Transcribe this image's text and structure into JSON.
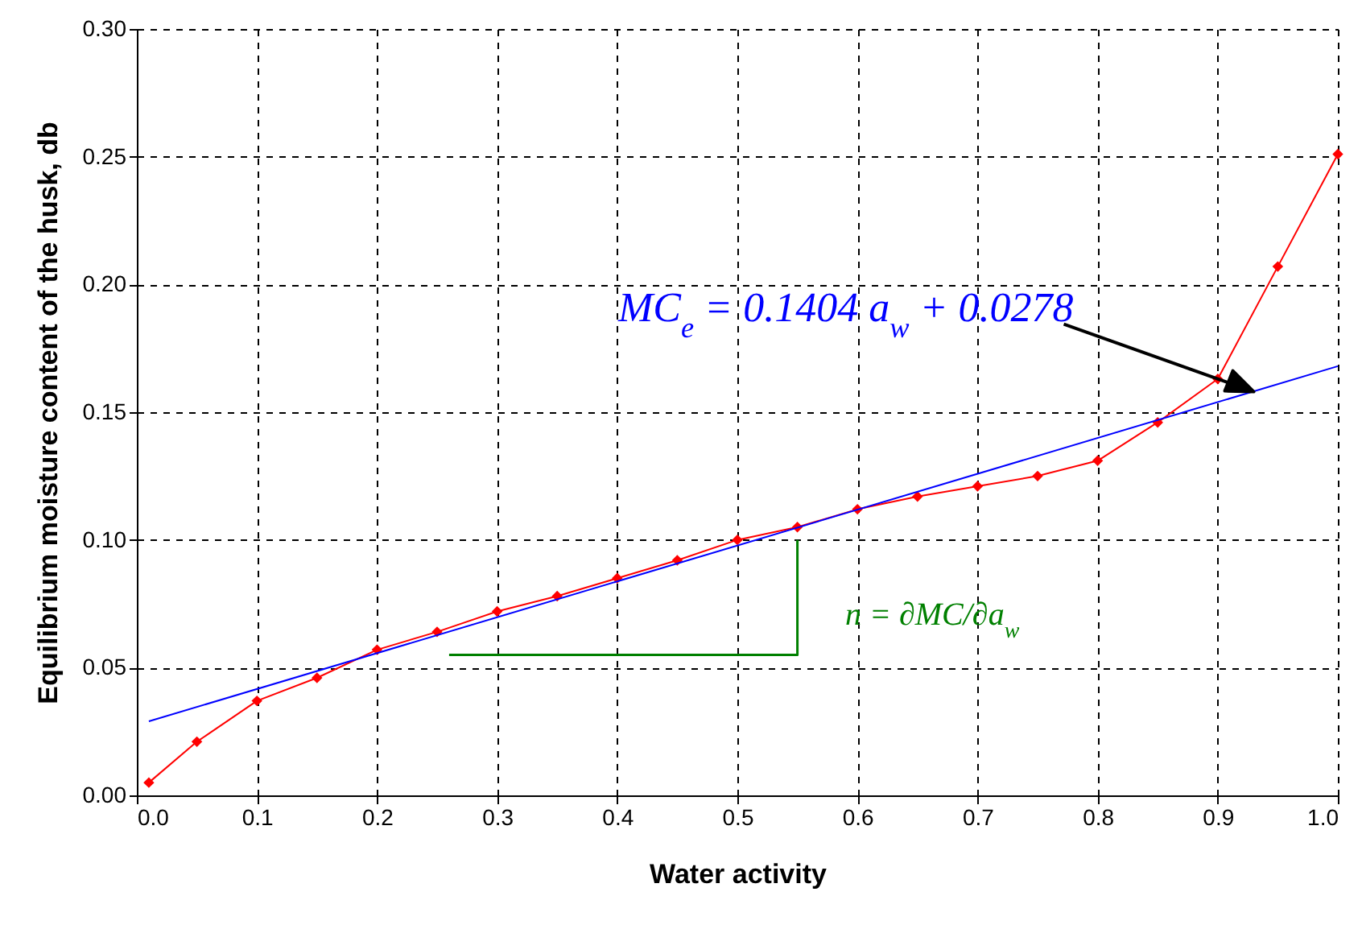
{
  "chart_data": {
    "type": "line",
    "xlabel": "Water activity",
    "ylabel": "Equilibrium moisture content of the husk, db",
    "x": [
      0.01,
      0.05,
      0.1,
      0.15,
      0.2,
      0.25,
      0.3,
      0.35,
      0.4,
      0.45,
      0.5,
      0.55,
      0.6,
      0.65,
      0.7,
      0.75,
      0.8,
      0.85,
      0.9,
      0.95,
      1.0
    ],
    "series": [
      {
        "color": "#ff0000",
        "marker": "diamond",
        "values": [
          0.005,
          0.021,
          0.037,
          0.046,
          0.057,
          0.064,
          0.072,
          0.078,
          0.085,
          0.092,
          0.1,
          0.105,
          0.112,
          0.117,
          0.121,
          0.125,
          0.131,
          0.146,
          0.163,
          0.207,
          0.251
        ]
      },
      {
        "type": "line",
        "color": "#0000ff",
        "marker": "none",
        "x": [
          0.01,
          1.0
        ],
        "values": [
          0.029,
          0.168
        ]
      },
      {
        "type": "line",
        "color": "#008000",
        "marker": "none",
        "x": [
          0.26,
          0.55,
          0.55
        ],
        "values": [
          0.055,
          0.055,
          0.1
        ]
      }
    ],
    "xlim": [
      0,
      1.0
    ],
    "xticks": [
      {
        "value": 0,
        "label": "0.0"
      },
      {
        "value": 0.1,
        "label": "0.1"
      },
      {
        "value": 0.2,
        "label": "0.2"
      },
      {
        "value": 0.3,
        "label": "0.3"
      },
      {
        "value": 0.4,
        "label": "0.4"
      },
      {
        "value": 0.5,
        "label": "0.5"
      },
      {
        "value": 0.6,
        "label": "0.6"
      },
      {
        "value": 0.7,
        "label": "0.7"
      },
      {
        "value": 0.8,
        "label": "0.8"
      },
      {
        "value": 0.9,
        "label": "0.9"
      },
      {
        "value": 1.0,
        "label": "1.0"
      }
    ],
    "ylim": [
      0,
      0.3
    ],
    "yticks": [
      {
        "value": 0,
        "label": "0.00"
      },
      {
        "value": 0.05,
        "label": "0.05"
      },
      {
        "value": 0.1,
        "label": "0.10"
      },
      {
        "value": 0.15,
        "label": "0.15"
      },
      {
        "value": 0.2,
        "label": "0.20"
      },
      {
        "value": 0.25,
        "label": "0.25"
      },
      {
        "value": 0.3,
        "label": "0.30"
      }
    ],
    "grid": true,
    "annotations": [
      {
        "text": "MC$_{e}$ = 0.1404 a$_{w}$ + 0.0278",
        "x": 0.93,
        "y": 0.158
      },
      "n = ∂MC/∂a$_{w}$"
    ]
  }
}
